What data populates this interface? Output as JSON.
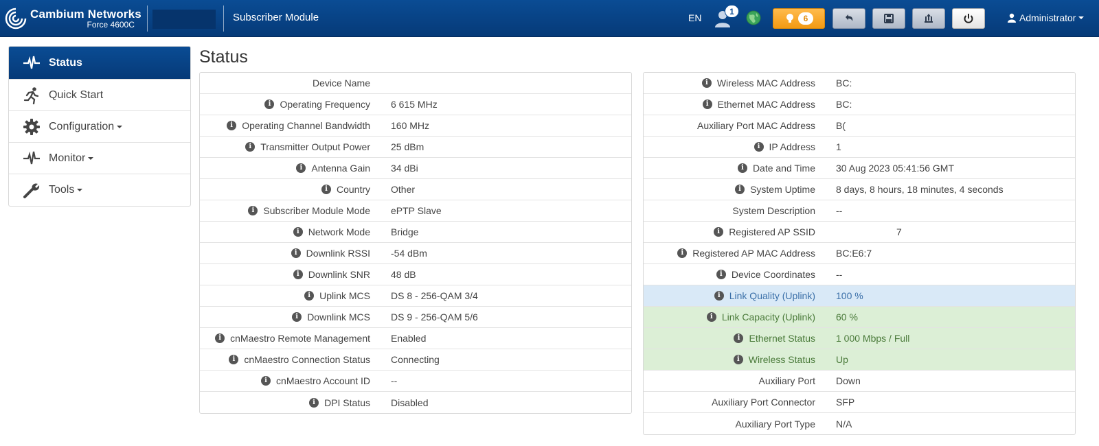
{
  "header": {
    "brand": "Cambium Networks",
    "model": "Force 4600C",
    "app_name": "Subscriber Module",
    "language": "EN",
    "user_count": "1",
    "alert_count": "6",
    "admin_label": "Administrator"
  },
  "sidebar": {
    "items": [
      {
        "label": "Status",
        "icon": "pulse-icon",
        "active": true
      },
      {
        "label": "Quick Start",
        "icon": "runner-icon"
      },
      {
        "label": "Configuration",
        "icon": "gear-icon",
        "dropdown": true
      },
      {
        "label": "Monitor",
        "icon": "pulse-icon",
        "dropdown": true
      },
      {
        "label": "Tools",
        "icon": "wrench-icon",
        "dropdown": true
      }
    ]
  },
  "page_title": "Status",
  "left_table": [
    {
      "label": "Device Name",
      "value": "",
      "info": false
    },
    {
      "label": "Operating Frequency",
      "value": "6 615 MHz",
      "info": true
    },
    {
      "label": "Operating Channel Bandwidth",
      "value": "160 MHz",
      "info": true
    },
    {
      "label": "Transmitter Output Power",
      "value": "25 dBm",
      "info": true
    },
    {
      "label": "Antenna Gain",
      "value": "34 dBi",
      "info": true
    },
    {
      "label": "Country",
      "value": "Other",
      "info": true
    },
    {
      "label": "Subscriber Module Mode",
      "value": "ePTP Slave",
      "info": true
    },
    {
      "label": "Network Mode",
      "value": "Bridge",
      "info": true
    },
    {
      "label": "Downlink RSSI",
      "value": "-54 dBm",
      "info": true
    },
    {
      "label": "Downlink SNR",
      "value": "48 dB",
      "info": true
    },
    {
      "label": "Uplink MCS",
      "value": "DS 8 - 256-QAM 3/4",
      "info": true
    },
    {
      "label": "Downlink MCS",
      "value": "DS 9 - 256-QAM 5/6",
      "info": true
    },
    {
      "label": "cnMaestro Remote Management",
      "value": "Enabled",
      "info": true
    },
    {
      "label": "cnMaestro Connection Status",
      "value": "Connecting",
      "info": true
    },
    {
      "label": "cnMaestro Account ID",
      "value": "--",
      "info": true
    },
    {
      "label": "DPI Status",
      "value": "Disabled",
      "info": true
    }
  ],
  "right_table": [
    {
      "label": "Wireless MAC Address",
      "value": "BC:",
      "info": true
    },
    {
      "label": "Ethernet MAC Address",
      "value": "BC:",
      "info": true
    },
    {
      "label": "Auxiliary Port MAC Address",
      "value": "B(",
      "info": false
    },
    {
      "label": "IP Address",
      "value": "1",
      "info": true
    },
    {
      "label": "Date and Time",
      "value": "30 Aug 2023 05:41:56 GMT",
      "info": true
    },
    {
      "label": "System Uptime",
      "value": "8 days, 8 hours, 18 minutes, 4 seconds",
      "info": true
    },
    {
      "label": "System Description",
      "value": "--",
      "info": false
    },
    {
      "label": "Registered AP SSID",
      "value": "7",
      "info": true
    },
    {
      "label": "Registered AP MAC Address",
      "value": "BC:E6:7",
      "info": true
    },
    {
      "label": "Device Coordinates",
      "value": "--",
      "info": true
    },
    {
      "label": "Link Quality (Uplink)",
      "value": "100 %",
      "info": true,
      "highlight": "blue"
    },
    {
      "label": "Link Capacity (Uplink)",
      "value": "60 %",
      "info": true,
      "highlight": "green"
    },
    {
      "label": "Ethernet Status",
      "value": "1 000 Mbps / Full",
      "info": true,
      "highlight": "green"
    },
    {
      "label": "Wireless Status",
      "value": "Up",
      "info": true,
      "highlight": "green"
    },
    {
      "label": "Auxiliary Port",
      "value": "Down",
      "info": false
    },
    {
      "label": "Auxiliary Port Connector",
      "value": "SFP",
      "info": false
    },
    {
      "label": "Auxiliary Port Type",
      "value": "N/A",
      "info": false
    }
  ],
  "colors": {
    "header_bg": "#0a4c94",
    "alert": "#f39a12",
    "link_quality_bg": "#d9e9f7",
    "link_capacity_bg": "#dcefd6"
  }
}
